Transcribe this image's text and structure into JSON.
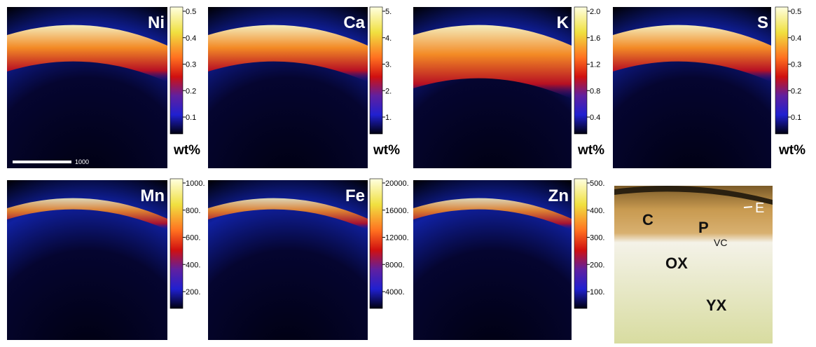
{
  "panels": [
    {
      "element": "Ni",
      "ticks": [
        "0.5",
        "0.4",
        "0.3",
        "0.2",
        "0.1"
      ],
      "unit": "wt%",
      "scale_bar": "1000"
    },
    {
      "element": "Ca",
      "ticks": [
        "5.",
        "4.",
        "3.",
        "2.",
        "1."
      ],
      "unit": "wt%"
    },
    {
      "element": "K",
      "ticks": [
        "2.0",
        "1.6",
        "1.2",
        "0.8",
        "0.4"
      ],
      "unit": "wt%"
    },
    {
      "element": "S",
      "ticks": [
        "0.5",
        "0.4",
        "0.3",
        "0.2",
        "0.1"
      ],
      "unit": "wt%"
    },
    {
      "element": "Mn",
      "ticks": [
        "1000.",
        "800.",
        "600.",
        "400.",
        "200."
      ]
    },
    {
      "element": "Fe",
      "ticks": [
        "20000.",
        "16000.",
        "12000.",
        "8000.",
        "4000."
      ]
    },
    {
      "element": "Zn",
      "ticks": [
        "500.",
        "400.",
        "300.",
        "200.",
        "100."
      ]
    }
  ],
  "photo": {
    "labels": [
      "C",
      "P",
      "VC",
      "E",
      "OX",
      "YX"
    ]
  }
}
